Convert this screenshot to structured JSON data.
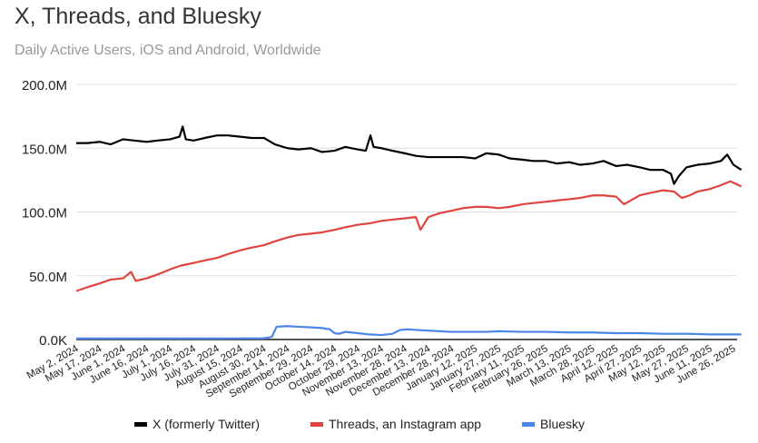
{
  "chart_data": {
    "type": "line",
    "title": "X, Threads, and Bluesky",
    "subtitle": "Daily Active Users, iOS and Android, Worldwide",
    "xlabel": "",
    "ylabel": "",
    "ylim": [
      0,
      200
    ],
    "y_ticks": [
      {
        "v": 0,
        "label": "0.0K"
      },
      {
        "v": 50,
        "label": "50.0M"
      },
      {
        "v": 100,
        "label": "100.0M"
      },
      {
        "v": 150,
        "label": "150.0M"
      },
      {
        "v": 200,
        "label": "200.0M"
      }
    ],
    "x_unit": "days since May 2, 2024",
    "x_ticks": [
      "May 2, 2024",
      "May 17, 2024",
      "June 1, 2024",
      "June 16, 2024",
      "July 1, 2024",
      "July 16, 2024",
      "July 31, 2024",
      "August 15, 2024",
      "August 30, 2024",
      "September 14, 2024",
      "September 29, 2024",
      "October 14, 2024",
      "October 29, 2024",
      "November 13, 2024",
      "November 28, 2024",
      "December 13, 2024",
      "December 28, 2024",
      "January 12, 2025",
      "January 27, 2025",
      "February 11, 2025",
      "February 26, 2025",
      "March 13, 2025",
      "March 28, 2025",
      "April 12, 2025",
      "April 27, 2025",
      "May 12, 2025",
      "May 27, 2025",
      "June 11, 2025",
      "June 26, 2025"
    ],
    "grid": true,
    "legend_position": "bottom",
    "series": [
      {
        "name": "X (formerly Twitter)",
        "color": "#000000",
        "points": [
          [
            0,
            154
          ],
          [
            7,
            154
          ],
          [
            15,
            155
          ],
          [
            22,
            153
          ],
          [
            30,
            157
          ],
          [
            37,
            156
          ],
          [
            45,
            155
          ],
          [
            52,
            156
          ],
          [
            60,
            157
          ],
          [
            66,
            159
          ],
          [
            68,
            167
          ],
          [
            70,
            157
          ],
          [
            75,
            156
          ],
          [
            82,
            158
          ],
          [
            90,
            160
          ],
          [
            97,
            160
          ],
          [
            105,
            159
          ],
          [
            112,
            158
          ],
          [
            120,
            158
          ],
          [
            127,
            153
          ],
          [
            135,
            150
          ],
          [
            142,
            149
          ],
          [
            150,
            150
          ],
          [
            157,
            147
          ],
          [
            165,
            148
          ],
          [
            172,
            151
          ],
          [
            180,
            149
          ],
          [
            185,
            148
          ],
          [
            188,
            160
          ],
          [
            190,
            151
          ],
          [
            195,
            150
          ],
          [
            202,
            148
          ],
          [
            210,
            146
          ],
          [
            217,
            144
          ],
          [
            225,
            143
          ],
          [
            232,
            143
          ],
          [
            240,
            143
          ],
          [
            247,
            143
          ],
          [
            255,
            142
          ],
          [
            262,
            146
          ],
          [
            270,
            145
          ],
          [
            277,
            142
          ],
          [
            285,
            141
          ],
          [
            292,
            140
          ],
          [
            300,
            140
          ],
          [
            307,
            138
          ],
          [
            315,
            139
          ],
          [
            322,
            137
          ],
          [
            330,
            138
          ],
          [
            337,
            140
          ],
          [
            345,
            136
          ],
          [
            352,
            137
          ],
          [
            360,
            135
          ],
          [
            367,
            133
          ],
          [
            375,
            133
          ],
          [
            380,
            130
          ],
          [
            382,
            122
          ],
          [
            385,
            128
          ],
          [
            390,
            135
          ],
          [
            397,
            137
          ],
          [
            405,
            138
          ],
          [
            412,
            140
          ],
          [
            416,
            145
          ],
          [
            420,
            137
          ],
          [
            425,
            133
          ]
        ]
      },
      {
        "name": "Threads, an Instagram app",
        "color": "#e0443e",
        "points": [
          [
            0,
            38
          ],
          [
            7,
            41
          ],
          [
            15,
            44
          ],
          [
            22,
            47
          ],
          [
            30,
            48
          ],
          [
            35,
            53
          ],
          [
            38,
            46
          ],
          [
            45,
            48
          ],
          [
            52,
            51
          ],
          [
            60,
            55
          ],
          [
            67,
            58
          ],
          [
            75,
            60
          ],
          [
            82,
            62
          ],
          [
            90,
            64
          ],
          [
            97,
            67
          ],
          [
            105,
            70
          ],
          [
            112,
            72
          ],
          [
            120,
            74
          ],
          [
            127,
            77
          ],
          [
            135,
            80
          ],
          [
            142,
            82
          ],
          [
            150,
            83
          ],
          [
            157,
            84
          ],
          [
            165,
            86
          ],
          [
            172,
            88
          ],
          [
            180,
            90
          ],
          [
            187,
            91
          ],
          [
            195,
            93
          ],
          [
            202,
            94
          ],
          [
            210,
            95
          ],
          [
            217,
            96
          ],
          [
            220,
            86
          ],
          [
            225,
            96
          ],
          [
            232,
            99
          ],
          [
            240,
            101
          ],
          [
            247,
            103
          ],
          [
            255,
            104
          ],
          [
            262,
            104
          ],
          [
            270,
            103
          ],
          [
            277,
            104
          ],
          [
            285,
            106
          ],
          [
            292,
            107
          ],
          [
            300,
            108
          ],
          [
            307,
            109
          ],
          [
            315,
            110
          ],
          [
            322,
            111
          ],
          [
            330,
            113
          ],
          [
            337,
            113
          ],
          [
            345,
            112
          ],
          [
            350,
            106
          ],
          [
            360,
            113
          ],
          [
            367,
            115
          ],
          [
            375,
            117
          ],
          [
            382,
            116
          ],
          [
            387,
            111
          ],
          [
            392,
            113
          ],
          [
            397,
            116
          ],
          [
            405,
            118
          ],
          [
            412,
            121
          ],
          [
            418,
            124
          ],
          [
            425,
            120
          ]
        ]
      },
      {
        "name": "Bluesky",
        "color": "#4a86e8",
        "points": [
          [
            0,
            0.8
          ],
          [
            30,
            0.8
          ],
          [
            60,
            0.8
          ],
          [
            90,
            0.8
          ],
          [
            120,
            1.0
          ],
          [
            125,
            2
          ],
          [
            128,
            10
          ],
          [
            135,
            10.5
          ],
          [
            142,
            10
          ],
          [
            150,
            9.5
          ],
          [
            157,
            9
          ],
          [
            162,
            8
          ],
          [
            165,
            5
          ],
          [
            168,
            4.5
          ],
          [
            172,
            6
          ],
          [
            180,
            5
          ],
          [
            187,
            4
          ],
          [
            195,
            3.5
          ],
          [
            202,
            4.5
          ],
          [
            207,
            7.5
          ],
          [
            212,
            8
          ],
          [
            217,
            7.5
          ],
          [
            225,
            7
          ],
          [
            232,
            6.5
          ],
          [
            240,
            6
          ],
          [
            255,
            6
          ],
          [
            262,
            6
          ],
          [
            270,
            6.5
          ],
          [
            285,
            6
          ],
          [
            300,
            6
          ],
          [
            315,
            5.5
          ],
          [
            330,
            5.5
          ],
          [
            345,
            5
          ],
          [
            360,
            5
          ],
          [
            375,
            4.5
          ],
          [
            390,
            4.5
          ],
          [
            405,
            4
          ],
          [
            425,
            4
          ]
        ]
      }
    ]
  }
}
